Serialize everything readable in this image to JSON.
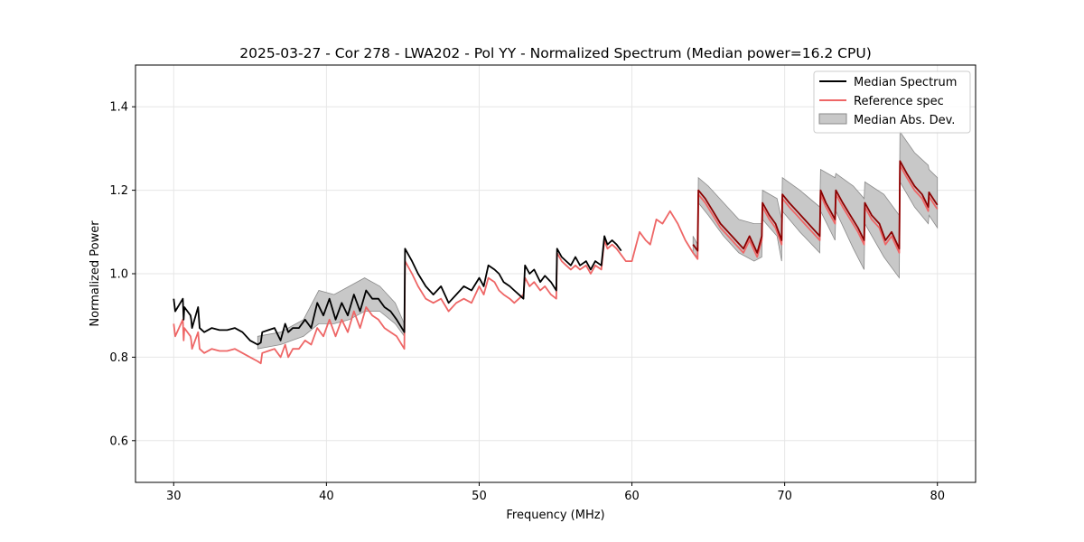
{
  "chart_data": {
    "type": "line",
    "title": "2025-03-27 - Cor 278 - LWA202 - Pol YY - Normalized Spectrum (Median power=16.2 CPU)",
    "xlabel": "Frequency (MHz)",
    "ylabel": "Normalized Power",
    "xlim": [
      27.5,
      82.5
    ],
    "ylim": [
      0.5,
      1.5
    ],
    "xticks": [
      30,
      40,
      50,
      60,
      70,
      80
    ],
    "yticks": [
      0.6,
      0.8,
      1.0,
      1.2,
      1.4
    ],
    "xtick_labels": [
      "30",
      "40",
      "50",
      "60",
      "70",
      "80"
    ],
    "ytick_labels": [
      "0.6",
      "0.8",
      "1.0",
      "1.2",
      "1.4"
    ],
    "grid": true,
    "legend_position": "top-right",
    "colors": {
      "median": "#000000",
      "reference": "#ee6666",
      "mad_fill": "#c8c8c8",
      "mad_edge": "#8a8a8a",
      "overlap": "#8b0000"
    },
    "series": [
      {
        "name": "Median Spectrum",
        "segments": [
          {
            "x": [
              30.0,
              30.1,
              30.6,
              30.65,
              30.7,
              31.1,
              31.15,
              31.2,
              31.6,
              31.7,
              32.0,
              32.5,
              33.0,
              33.5,
              34.0,
              34.5,
              35.0,
              35.5,
              35.7,
              35.8,
              36.2,
              36.6,
              37.0,
              37.3,
              37.5,
              37.8,
              38.2,
              38.6,
              39.0,
              39.4,
              39.8,
              40.2,
              40.6,
              41.0,
              41.4,
              41.8,
              42.2,
              42.6,
              43.0,
              43.4,
              43.8,
              44.2,
              44.6,
              45.1,
              45.15,
              45.6,
              46.0,
              46.5,
              47.0,
              47.5,
              48.0,
              48.5,
              49.0,
              49.5,
              50.0,
              50.3,
              50.6,
              51.0,
              51.3,
              51.6,
              52.0,
              52.3,
              52.6,
              52.9,
              53.0,
              53.3,
              53.6,
              54.0,
              54.3,
              54.7,
              55.05,
              55.1,
              55.4,
              55.7,
              56.0,
              56.3,
              56.6,
              57.0,
              57.3,
              57.6,
              58.0,
              58.2,
              58.4,
              58.7,
              59.0,
              59.3
            ],
            "y": [
              0.94,
              0.91,
              0.94,
              0.89,
              0.92,
              0.9,
              0.89,
              0.87,
              0.92,
              0.87,
              0.86,
              0.87,
              0.865,
              0.865,
              0.87,
              0.86,
              0.84,
              0.83,
              0.835,
              0.86,
              0.865,
              0.87,
              0.84,
              0.88,
              0.86,
              0.87,
              0.87,
              0.89,
              0.87,
              0.93,
              0.9,
              0.94,
              0.89,
              0.93,
              0.9,
              0.95,
              0.91,
              0.96,
              0.94,
              0.94,
              0.92,
              0.91,
              0.89,
              0.86,
              1.06,
              1.03,
              1.0,
              0.97,
              0.95,
              0.97,
              0.93,
              0.95,
              0.97,
              0.96,
              0.99,
              0.97,
              1.02,
              1.01,
              1.0,
              0.98,
              0.97,
              0.96,
              0.95,
              0.94,
              1.02,
              1.0,
              1.01,
              0.98,
              0.995,
              0.98,
              0.96,
              1.06,
              1.04,
              1.03,
              1.02,
              1.04,
              1.02,
              1.03,
              1.01,
              1.03,
              1.02,
              1.09,
              1.07,
              1.08,
              1.07,
              1.055
            ]
          },
          {
            "x": [
              64.0,
              64.3,
              64.35,
              64.8,
              65.3,
              65.8,
              66.3,
              66.8,
              67.3,
              67.7,
              68.2,
              68.5,
              68.55,
              69.0,
              69.4,
              69.8,
              69.85,
              70.3,
              70.8,
              71.3,
              71.8,
              72.3,
              72.35,
              72.7,
              73.0,
              73.3,
              73.35,
              73.8,
              74.3,
              74.8,
              75.2,
              75.25,
              75.7,
              76.2,
              76.6,
              77.0,
              77.5,
              77.55,
              78.0,
              78.5,
              79.0,
              79.4,
              79.45,
              79.9,
              80.0
            ],
            "y": [
              1.07,
              1.055,
              1.2,
              1.18,
              1.15,
              1.12,
              1.1,
              1.08,
              1.06,
              1.09,
              1.05,
              1.09,
              1.17,
              1.14,
              1.12,
              1.08,
              1.19,
              1.17,
              1.15,
              1.13,
              1.11,
              1.09,
              1.2,
              1.17,
              1.15,
              1.13,
              1.2,
              1.17,
              1.14,
              1.11,
              1.08,
              1.17,
              1.14,
              1.12,
              1.08,
              1.1,
              1.06,
              1.27,
              1.24,
              1.21,
              1.19,
              1.16,
              1.195,
              1.17,
              1.165
            ]
          }
        ]
      },
      {
        "name": "Reference spec",
        "segments": [
          {
            "x": [
              30.0,
              30.1,
              30.6,
              30.65,
              30.7,
              31.1,
              31.15,
              31.2,
              31.6,
              31.7,
              32.0,
              32.5,
              33.0,
              33.5,
              34.0,
              34.5,
              35.0,
              35.5,
              35.7,
              35.8,
              36.2,
              36.6,
              37.0,
              37.3,
              37.5,
              37.8,
              38.2,
              38.6,
              39.0,
              39.4,
              39.8,
              40.2,
              40.6,
              41.0,
              41.4,
              41.8,
              42.2,
              42.6,
              43.0,
              43.4,
              43.8,
              44.2,
              44.6,
              45.1,
              45.15,
              45.6,
              46.0,
              46.5,
              47.0,
              47.5,
              48.0,
              48.5,
              49.0,
              49.5,
              50.0,
              50.3,
              50.6,
              51.0,
              51.3,
              51.6,
              52.0,
              52.3,
              52.6,
              52.9,
              53.0,
              53.3,
              53.6,
              54.0,
              54.3,
              54.7,
              55.05,
              55.1,
              55.4,
              55.7,
              56.0,
              56.3,
              56.6,
              57.0,
              57.3,
              57.6,
              58.0,
              58.2,
              58.4,
              58.7,
              59.0,
              59.3,
              59.6,
              60.0,
              60.5,
              60.9,
              61.2,
              61.6,
              62.0,
              62.5,
              63.0,
              63.5,
              64.0,
              64.3,
              64.35,
              64.8,
              65.3,
              65.8,
              66.3,
              66.8,
              67.3,
              67.7,
              68.2,
              68.5,
              68.55,
              69.0,
              69.4,
              69.8,
              69.85,
              70.3,
              70.8,
              71.3,
              71.8,
              72.3,
              72.35,
              72.7,
              73.0,
              73.3,
              73.35,
              73.8,
              74.3,
              74.8,
              75.2,
              75.25,
              75.7,
              76.2,
              76.6,
              77.0,
              77.5,
              77.55,
              78.0,
              78.5,
              79.0,
              79.4,
              79.45,
              79.9,
              80.0
            ],
            "y": [
              0.88,
              0.85,
              0.89,
              0.84,
              0.87,
              0.85,
              0.84,
              0.82,
              0.86,
              0.82,
              0.81,
              0.82,
              0.815,
              0.815,
              0.82,
              0.81,
              0.8,
              0.79,
              0.785,
              0.81,
              0.815,
              0.82,
              0.8,
              0.83,
              0.8,
              0.82,
              0.82,
              0.84,
              0.83,
              0.87,
              0.85,
              0.89,
              0.85,
              0.89,
              0.86,
              0.91,
              0.87,
              0.92,
              0.9,
              0.89,
              0.87,
              0.86,
              0.85,
              0.82,
              1.03,
              1.0,
              0.97,
              0.94,
              0.93,
              0.94,
              0.91,
              0.93,
              0.94,
              0.93,
              0.97,
              0.95,
              0.99,
              0.98,
              0.96,
              0.95,
              0.94,
              0.93,
              0.94,
              0.95,
              0.99,
              0.97,
              0.98,
              0.96,
              0.97,
              0.95,
              0.94,
              1.05,
              1.03,
              1.02,
              1.01,
              1.02,
              1.01,
              1.02,
              1.0,
              1.02,
              1.01,
              1.08,
              1.06,
              1.07,
              1.06,
              1.045,
              1.03,
              1.03,
              1.1,
              1.08,
              1.07,
              1.13,
              1.12,
              1.15,
              1.12,
              1.08,
              1.05,
              1.035,
              1.19,
              1.17,
              1.14,
              1.11,
              1.09,
              1.07,
              1.05,
              1.08,
              1.04,
              1.08,
              1.16,
              1.13,
              1.11,
              1.07,
              1.18,
              1.16,
              1.14,
              1.12,
              1.1,
              1.08,
              1.19,
              1.16,
              1.14,
              1.12,
              1.19,
              1.16,
              1.13,
              1.1,
              1.07,
              1.16,
              1.13,
              1.11,
              1.07,
              1.09,
              1.05,
              1.26,
              1.23,
              1.2,
              1.18,
              1.15,
              1.185,
              1.16,
              1.155
            ]
          }
        ]
      },
      {
        "name": "Median Abs. Dev.",
        "segments": [
          {
            "x": [
              35.5,
              37.0,
              38.5,
              39.5,
              40.5,
              41.5,
              42.5,
              43.5,
              44.5,
              45.1
            ],
            "lower": [
              0.82,
              0.83,
              0.85,
              0.88,
              0.88,
              0.89,
              0.91,
              0.91,
              0.88,
              0.85
            ],
            "upper": [
              0.85,
              0.86,
              0.89,
              0.96,
              0.95,
              0.97,
              0.99,
              0.97,
              0.93,
              0.88
            ]
          },
          {
            "x": [
              64.0,
              64.3,
              64.35,
              65.0,
              66.0,
              67.0,
              68.0,
              68.5,
              68.55,
              69.5,
              69.8,
              69.85,
              71.0,
              72.3,
              72.35,
              73.3,
              73.35,
              74.5,
              75.2,
              75.25,
              76.5,
              77.5,
              77.55,
              78.5,
              79.4,
              79.45,
              80.0
            ],
            "lower": [
              1.05,
              1.04,
              1.17,
              1.14,
              1.09,
              1.05,
              1.03,
              1.04,
              1.13,
              1.09,
              1.03,
              1.15,
              1.1,
              1.05,
              1.15,
              1.08,
              1.15,
              1.06,
              1.01,
              1.12,
              1.04,
              0.99,
              1.22,
              1.16,
              1.12,
              1.14,
              1.11
            ],
            "upper": [
              1.09,
              1.07,
              1.23,
              1.21,
              1.17,
              1.13,
              1.12,
              1.12,
              1.2,
              1.18,
              1.13,
              1.23,
              1.2,
              1.16,
              1.25,
              1.23,
              1.24,
              1.21,
              1.18,
              1.22,
              1.19,
              1.14,
              1.34,
              1.29,
              1.26,
              1.25,
              1.23
            ]
          }
        ]
      }
    ]
  }
}
